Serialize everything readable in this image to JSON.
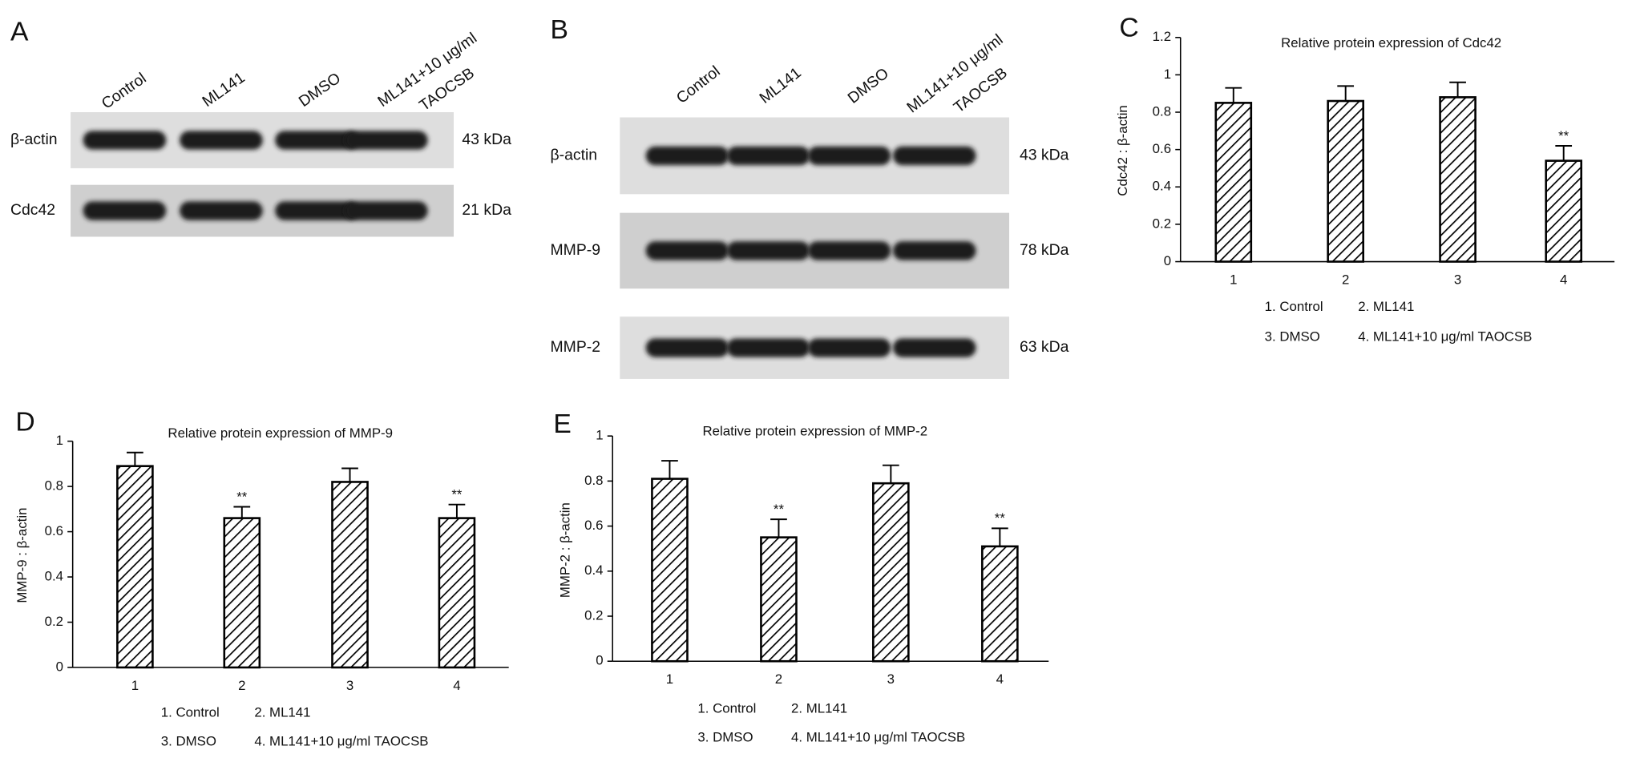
{
  "blots": [
    {
      "panel": "A",
      "lanes": [
        "Control",
        "ML141",
        "DMSO",
        "ML141+10 μg/ml",
        "TAOCSB"
      ],
      "rows": [
        {
          "protein": "β-actin",
          "size": "43 kDa"
        },
        {
          "protein": "Cdc42",
          "size": "21 kDa"
        }
      ]
    },
    {
      "panel": "B",
      "lanes": [
        "Control",
        "ML141",
        "DMSO",
        "ML141+10 μg/ml",
        "TAOCSB"
      ],
      "rows": [
        {
          "protein": "β-actin",
          "size": "43 kDa"
        },
        {
          "protein": "MMP-9",
          "size": "78 kDa"
        },
        {
          "protein": "MMP-2",
          "size": "63 kDa"
        }
      ]
    }
  ],
  "chart_data": [
    {
      "type": "bar",
      "panel": "C",
      "title": "Relative protein expression of Cdc42",
      "y_label": "Cdc42 : β-actin",
      "categories": [
        "1",
        "2",
        "3",
        "4"
      ],
      "values": [
        0.85,
        0.86,
        0.88,
        0.54
      ],
      "errors": [
        0.08,
        0.08,
        0.08,
        0.08
      ],
      "significance": [
        null,
        null,
        null,
        "**"
      ],
      "ylim": [
        0,
        1.2
      ],
      "yticks": [
        0,
        0.2,
        0.4,
        0.6,
        0.8,
        1,
        1.2
      ],
      "legend_lines": [
        [
          "1. Control",
          "2. ML141"
        ],
        [
          "3. DMSO",
          "4. ML141+10 μg/ml  TAOCSB"
        ]
      ]
    },
    {
      "type": "bar",
      "panel": "D",
      "title": "Relative protein expression of MMP-9",
      "y_label": "MMP-9 : β-actin",
      "categories": [
        "1",
        "2",
        "3",
        "4"
      ],
      "values": [
        0.89,
        0.66,
        0.82,
        0.66
      ],
      "errors": [
        0.06,
        0.05,
        0.06,
        0.06
      ],
      "significance": [
        null,
        "**",
        null,
        "**"
      ],
      "ylim": [
        0,
        1
      ],
      "yticks": [
        0,
        0.2,
        0.4,
        0.6,
        0.8,
        1
      ],
      "legend_lines": [
        [
          "1. Control",
          "2. ML141"
        ],
        [
          "3. DMSO",
          "4. ML141+10 μg/ml TAOCSB"
        ]
      ]
    },
    {
      "type": "bar",
      "panel": "E",
      "title": "Relative protein expression of MMP-2",
      "y_label": "MMP-2 : β-actin",
      "categories": [
        "1",
        "2",
        "3",
        "4"
      ],
      "values": [
        0.81,
        0.55,
        0.79,
        0.51
      ],
      "errors": [
        0.08,
        0.08,
        0.08,
        0.08
      ],
      "significance": [
        null,
        "**",
        null,
        "**"
      ],
      "ylim": [
        0,
        1
      ],
      "yticks": [
        0,
        0.2,
        0.4,
        0.6,
        0.8,
        1
      ],
      "legend_lines": [
        [
          "1. Control",
          "2. ML141"
        ],
        [
          "3. DMSO",
          "4. ML141+10 μg/ml TAOCSB"
        ]
      ]
    }
  ]
}
